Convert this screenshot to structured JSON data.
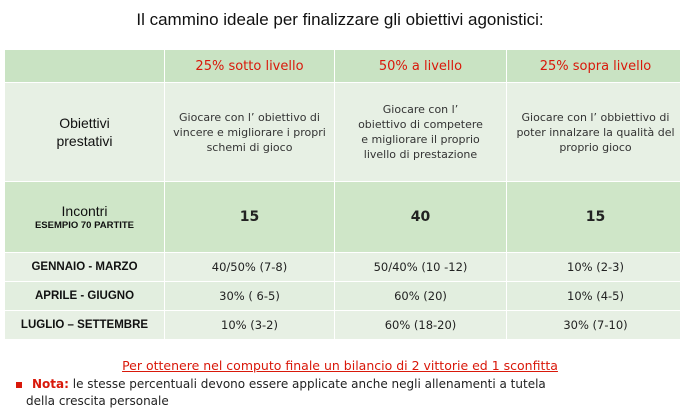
{
  "title": "Il cammino ideale per finalizzare gli obiettivi agonistici:",
  "table": {
    "headers": [
      "",
      "25%  sotto livello",
      "50% a livello",
      "25%  sopra livello"
    ],
    "objectives": {
      "label": "Obiettivi prestativi",
      "cells": [
        "Giocare con l’ obiettivo di vincere e migliorare i propri schemi di gioco",
        "Giocare con l’ obiettivo di competere e migliorare il proprio livello di prestazione",
        "Giocare con l’ obbiettivo di poter innalzare la qualità del proprio gioco"
      ]
    },
    "incontri": {
      "label": "Incontri",
      "sublabel": "ESEMPIO 70 PARTITE",
      "values": [
        "15",
        "40",
        "15"
      ]
    },
    "months": [
      {
        "label": "GENNAIO - MARZO",
        "values": [
          "40/50% (7-8)",
          "50/40% (10 -12)",
          "10% (2-3)"
        ]
      },
      {
        "label": "APRILE - GIUGNO",
        "values": [
          "30% ( 6-5)",
          "60% (20)",
          "10% (4-5)"
        ]
      },
      {
        "label": "LUGLIO – SETTEMBRE",
        "values": [
          "10% (3-2)",
          "60% (18-20)",
          "30% (7-10)"
        ]
      }
    ]
  },
  "footer": {
    "red_line": "Per ottenere nel computo finale un bilancio di 2 vittorie ed 1 sconfitta",
    "nota_label": "Nota:",
    "nota_text": " le stesse percentuali devono essere applicate anche negli allenamenti a tutela",
    "nota_text2": "della crescita personale"
  },
  "colors": {
    "header_bg": "#c9e3c3",
    "accent_red": "#d9180a",
    "row_bg": "#e7f0e4"
  }
}
